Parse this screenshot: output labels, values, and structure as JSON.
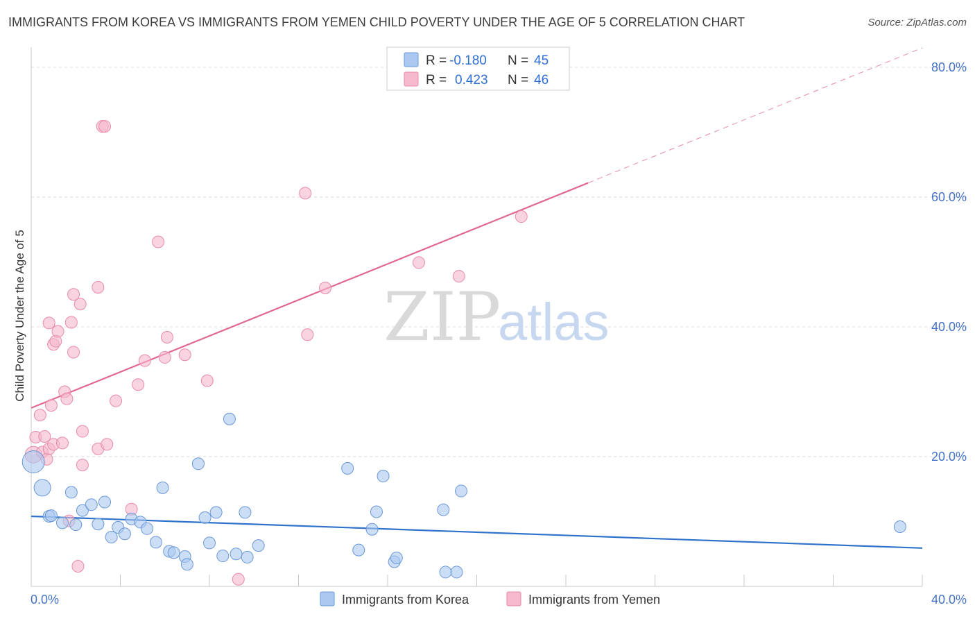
{
  "title": "IMMIGRANTS FROM KOREA VS IMMIGRANTS FROM YEMEN CHILD POVERTY UNDER THE AGE OF 5 CORRELATION CHART",
  "source": "Source: ZipAtlas.com",
  "watermark": {
    "zip": "ZIP",
    "atlas": "atlas"
  },
  "legend": {
    "korea": {
      "r_label": "R =",
      "r_value": "-0.180",
      "n_label": "N =",
      "n_value": "45"
    },
    "yemen": {
      "r_label": "R =",
      "r_value": "0.423",
      "n_label": "N =",
      "n_value": "46"
    }
  },
  "colors": {
    "korea_fill": "#aac8f0",
    "korea_stroke": "#6a98d8",
    "korea_line": "#2f72cc",
    "yemen_fill": "#f5b8cc",
    "yemen_stroke": "#e88aa8",
    "yemen_line": "#e06890",
    "grid": "#d8d8d8",
    "axis_label": "#4472c4"
  },
  "chart_data": {
    "type": "scatter",
    "title": "IMMIGRANTS FROM KOREA VS IMMIGRANTS FROM YEMEN CHILD POVERTY UNDER THE AGE OF 5 CORRELATION CHART",
    "xlabel": "",
    "ylabel": "Child Poverty Under the Age of 5",
    "xlim": [
      0,
      40
    ],
    "ylim": [
      0,
      80
    ],
    "x_tick_labels": [
      "0.0%",
      "40.0%"
    ],
    "y_ticks": [
      20,
      40,
      60,
      80
    ],
    "y_tick_labels": [
      "20.0%",
      "40.0%",
      "60.0%",
      "80.0%"
    ],
    "grid": true,
    "legend_position": "top-center",
    "series": [
      {
        "name": "Immigrants from Korea",
        "r": -0.18,
        "n": 45,
        "trend": {
          "x0": 0,
          "y0": 10.8,
          "x1": 40,
          "y1": 5.9,
          "dashed_from": null
        },
        "points": [
          [
            0.1,
            19.2,
            3
          ],
          [
            0.5,
            15.2,
            2
          ],
          [
            0.8,
            10.8,
            1
          ],
          [
            0.9,
            10.9,
            1
          ],
          [
            1.4,
            9.8,
            1
          ],
          [
            1.8,
            14.5,
            1
          ],
          [
            2.0,
            9.5,
            1
          ],
          [
            2.3,
            11.7,
            1
          ],
          [
            2.7,
            12.6,
            1
          ],
          [
            3.0,
            9.6,
            1
          ],
          [
            3.3,
            13.0,
            1
          ],
          [
            3.6,
            7.6,
            1
          ],
          [
            3.9,
            9.1,
            1
          ],
          [
            4.2,
            8.1,
            1
          ],
          [
            4.5,
            10.4,
            1
          ],
          [
            4.9,
            9.9,
            1
          ],
          [
            5.2,
            8.9,
            1
          ],
          [
            5.6,
            6.8,
            1
          ],
          [
            5.9,
            15.2,
            1
          ],
          [
            6.2,
            5.4,
            1
          ],
          [
            6.4,
            5.2,
            1
          ],
          [
            6.9,
            4.6,
            1
          ],
          [
            7.0,
            3.4,
            1
          ],
          [
            7.5,
            18.9,
            1
          ],
          [
            7.8,
            10.6,
            1
          ],
          [
            8.0,
            6.7,
            1
          ],
          [
            8.3,
            11.4,
            1
          ],
          [
            8.6,
            4.7,
            1
          ],
          [
            8.9,
            25.8,
            1
          ],
          [
            9.2,
            5.0,
            1
          ],
          [
            9.6,
            11.4,
            1
          ],
          [
            9.7,
            4.5,
            1
          ],
          [
            10.2,
            6.3,
            1
          ],
          [
            14.2,
            18.2,
            1
          ],
          [
            14.7,
            5.6,
            1
          ],
          [
            15.3,
            8.8,
            1
          ],
          [
            15.5,
            11.5,
            1
          ],
          [
            15.8,
            17.0,
            1
          ],
          [
            16.3,
            3.8,
            1
          ],
          [
            16.4,
            4.4,
            1
          ],
          [
            18.5,
            11.8,
            1
          ],
          [
            18.6,
            2.2,
            1
          ],
          [
            19.1,
            2.2,
            1
          ],
          [
            19.3,
            14.7,
            1
          ],
          [
            39.0,
            9.2,
            1
          ]
        ]
      },
      {
        "name": "Immigrants from Yemen",
        "r": 0.423,
        "n": 46,
        "trend": {
          "x0": 0,
          "y0": 27.5,
          "x1": 40,
          "y1": 83.0,
          "solid_until_x": 25.0
        },
        "points": [
          [
            0.1,
            20.3,
            2
          ],
          [
            0.2,
            23.0,
            1
          ],
          [
            0.4,
            26.4,
            1
          ],
          [
            0.5,
            20.7,
            1
          ],
          [
            0.6,
            23.1,
            1
          ],
          [
            0.7,
            19.6,
            1
          ],
          [
            0.8,
            21.2,
            1
          ],
          [
            0.8,
            40.6,
            1
          ],
          [
            0.9,
            27.9,
            1
          ],
          [
            1.0,
            21.9,
            1
          ],
          [
            1.0,
            37.3,
            1
          ],
          [
            1.1,
            37.8,
            1
          ],
          [
            1.2,
            39.3,
            1
          ],
          [
            1.4,
            22.1,
            1
          ],
          [
            1.5,
            30.0,
            1
          ],
          [
            1.6,
            28.9,
            1
          ],
          [
            1.7,
            10.1,
            1
          ],
          [
            1.8,
            40.7,
            1
          ],
          [
            1.9,
            36.1,
            1
          ],
          [
            1.9,
            45.0,
            1
          ],
          [
            2.1,
            3.1,
            1
          ],
          [
            2.2,
            43.5,
            1
          ],
          [
            2.3,
            18.7,
            1
          ],
          [
            2.3,
            23.9,
            1
          ],
          [
            3.0,
            21.2,
            1
          ],
          [
            3.0,
            46.1,
            1
          ],
          [
            3.2,
            70.9,
            1
          ],
          [
            3.3,
            70.9,
            1
          ],
          [
            3.4,
            21.9,
            1
          ],
          [
            3.8,
            28.6,
            1
          ],
          [
            4.5,
            11.9,
            1
          ],
          [
            4.8,
            31.1,
            1
          ],
          [
            5.1,
            34.8,
            1
          ],
          [
            5.7,
            53.1,
            1
          ],
          [
            6.0,
            35.3,
            1
          ],
          [
            6.1,
            38.4,
            1
          ],
          [
            6.9,
            35.7,
            1
          ],
          [
            7.9,
            31.7,
            1
          ],
          [
            9.3,
            1.1,
            1
          ],
          [
            12.3,
            60.6,
            1
          ],
          [
            12.4,
            38.8,
            1
          ],
          [
            13.2,
            46.0,
            1
          ],
          [
            17.4,
            49.9,
            1
          ],
          [
            19.2,
            47.8,
            1
          ],
          [
            22.0,
            57.0,
            1
          ]
        ]
      }
    ]
  },
  "bottom_legend": {
    "korea_label": "Immigrants from Korea",
    "yemen_label": "Immigrants from Yemen"
  }
}
